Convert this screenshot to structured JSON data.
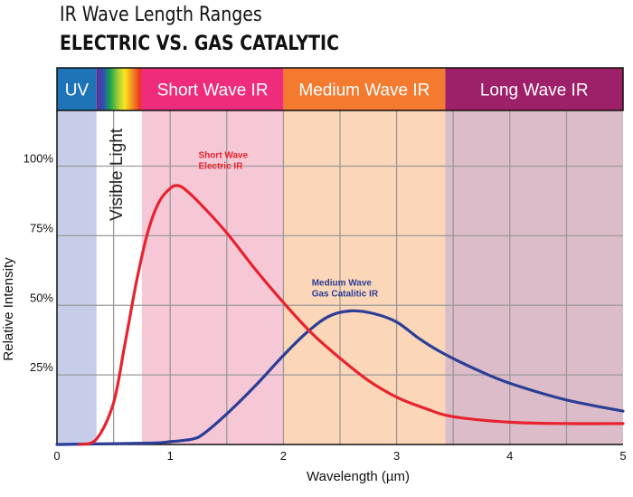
{
  "title": "IR Wave Length Ranges",
  "subtitle": "ELECTRIC VS. GAS CATALYTIC",
  "colors": {
    "uv": "#1f73b7",
    "short": "#ee2c7b",
    "medium": "#f47a2f",
    "long": "#9e2068",
    "uv_bg": "#c5cde9",
    "short_bg": "#f6c8d5",
    "medium_bg": "#fbd6b8",
    "long_bg": "#dcbcc8",
    "electric": "#e8222e",
    "gas": "#2c3e96"
  },
  "chart_data": {
    "type": "line",
    "xlabel": "Wavelength (µm)",
    "ylabel": "Relative Intensity",
    "xlim": [
      0,
      5
    ],
    "ylim": [
      0,
      1.2
    ],
    "x_ticks": [
      "0",
      "1",
      "2",
      "3",
      "4",
      "5"
    ],
    "y_ticks": [
      {
        "value": 0.25,
        "label": "25%"
      },
      {
        "value": 0.5,
        "label": "50%"
      },
      {
        "value": 0.75,
        "label": "75%"
      },
      {
        "value": 1.0,
        "label": "100%"
      }
    ],
    "grid": true,
    "bands": [
      {
        "name": "UV",
        "from": 0,
        "to": 0.35,
        "key": "uv"
      },
      {
        "name": "Visible Light",
        "from": 0.35,
        "to": 0.75,
        "key": "visible"
      },
      {
        "name": "Short Wave IR",
        "from": 0.75,
        "to": 2.0,
        "key": "short"
      },
      {
        "name": "Medium Wave IR",
        "from": 2.0,
        "to": 3.43,
        "key": "medium"
      },
      {
        "name": "Long Wave IR",
        "from": 3.43,
        "to": 5.0,
        "key": "long"
      }
    ],
    "series": [
      {
        "name": "Short Wave Electric IR",
        "color_key": "electric",
        "points": [
          [
            0.2,
            0.0
          ],
          [
            0.35,
            0.02
          ],
          [
            0.5,
            0.15
          ],
          [
            0.6,
            0.36
          ],
          [
            0.7,
            0.58
          ],
          [
            0.8,
            0.76
          ],
          [
            0.9,
            0.87
          ],
          [
            1.0,
            0.92
          ],
          [
            1.07,
            0.93
          ],
          [
            1.15,
            0.91
          ],
          [
            1.3,
            0.85
          ],
          [
            1.5,
            0.76
          ],
          [
            1.75,
            0.63
          ],
          [
            2.0,
            0.51
          ],
          [
            2.25,
            0.4
          ],
          [
            2.5,
            0.31
          ],
          [
            2.75,
            0.23
          ],
          [
            3.0,
            0.17
          ],
          [
            3.25,
            0.13
          ],
          [
            3.5,
            0.1
          ],
          [
            4.0,
            0.08
          ],
          [
            4.5,
            0.075
          ],
          [
            5.0,
            0.075
          ]
        ]
      },
      {
        "name": "Medium Wave Gas Catalitic IR",
        "color_key": "gas",
        "points": [
          [
            0.0,
            0.0
          ],
          [
            0.8,
            0.005
          ],
          [
            1.0,
            0.01
          ],
          [
            1.2,
            0.02
          ],
          [
            1.3,
            0.04
          ],
          [
            1.5,
            0.11
          ],
          [
            1.75,
            0.21
          ],
          [
            2.0,
            0.32
          ],
          [
            2.2,
            0.4
          ],
          [
            2.4,
            0.46
          ],
          [
            2.6,
            0.48
          ],
          [
            2.8,
            0.47
          ],
          [
            3.0,
            0.44
          ],
          [
            3.2,
            0.38
          ],
          [
            3.4,
            0.33
          ],
          [
            3.7,
            0.27
          ],
          [
            4.0,
            0.22
          ],
          [
            4.5,
            0.16
          ],
          [
            5.0,
            0.12
          ]
        ]
      }
    ],
    "annotations": [
      {
        "text_lines": [
          "Short Wave",
          "Electric IR"
        ],
        "series": 0,
        "x": 1.25,
        "y": 1.03
      },
      {
        "text_lines": [
          "Medium Wave",
          "Gas Catalitic IR"
        ],
        "series": 1,
        "x": 2.25,
        "y": 0.57
      }
    ]
  }
}
